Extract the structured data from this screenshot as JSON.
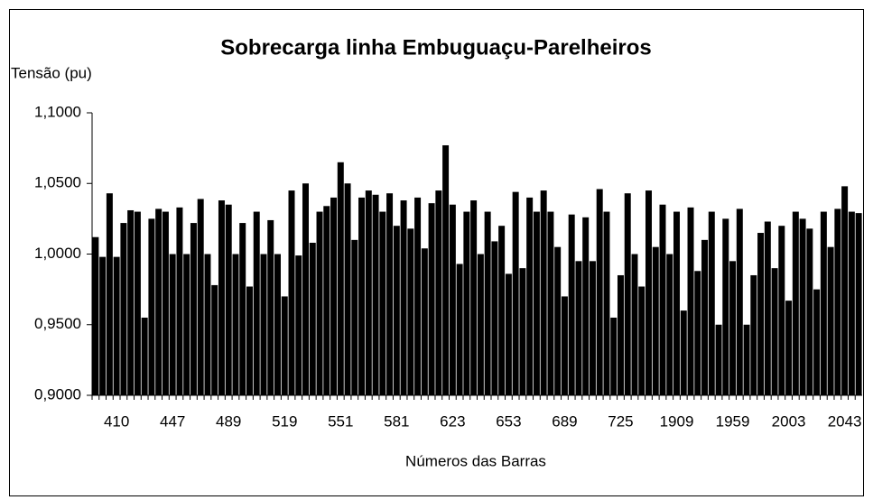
{
  "chart_data": {
    "type": "bar",
    "title": "Sobrecarga linha Embuguaçu-Parelheiros",
    "y_label": "Tensão (pu)",
    "x_label": "Números das Barras",
    "color": "#000000",
    "categories": [
      null,
      null,
      null,
      "410",
      null,
      null,
      null,
      null,
      null,
      null,
      null,
      "447",
      null,
      null,
      null,
      null,
      null,
      null,
      null,
      "489",
      null,
      null,
      null,
      null,
      null,
      null,
      null,
      "519",
      null,
      null,
      null,
      null,
      null,
      null,
      null,
      "551",
      null,
      null,
      null,
      null,
      null,
      null,
      null,
      "581",
      null,
      null,
      null,
      null,
      null,
      null,
      null,
      "623",
      null,
      null,
      null,
      null,
      null,
      null,
      null,
      "653",
      null,
      null,
      null,
      null,
      null,
      null,
      null,
      "689",
      null,
      null,
      null,
      null,
      null,
      null,
      null,
      "725",
      null,
      null,
      null,
      null,
      null,
      null,
      null,
      "1909",
      null,
      null,
      null,
      null,
      null,
      null,
      null,
      "1959",
      null,
      null,
      null,
      null,
      null,
      null,
      null,
      "2003",
      null,
      null,
      null,
      null,
      null,
      null,
      null,
      "2043",
      null,
      null
    ],
    "values": [
      1.012,
      0.998,
      1.043,
      0.998,
      1.022,
      1.031,
      1.03,
      0.955,
      1.025,
      1.032,
      1.03,
      1.0,
      1.033,
      1.0,
      1.022,
      1.039,
      1.0,
      0.978,
      1.038,
      1.035,
      1.0,
      1.022,
      0.977,
      1.03,
      1.0,
      1.024,
      1.0,
      0.97,
      1.045,
      0.999,
      1.05,
      1.008,
      1.03,
      1.034,
      1.04,
      1.065,
      1.05,
      1.01,
      1.04,
      1.045,
      1.042,
      1.03,
      1.043,
      1.02,
      1.038,
      1.018,
      1.04,
      1.004,
      1.036,
      1.045,
      1.077,
      1.035,
      0.993,
      1.03,
      1.038,
      1.0,
      1.03,
      1.009,
      1.02,
      0.986,
      1.044,
      0.99,
      1.04,
      1.03,
      1.045,
      1.03,
      1.005,
      0.97,
      1.028,
      0.995,
      1.026,
      0.995,
      1.046,
      1.03,
      0.955,
      0.985,
      1.043,
      1.0,
      0.977,
      1.045,
      1.005,
      1.035,
      1.0,
      1.03,
      0.96,
      1.033,
      0.988,
      1.01,
      1.03,
      0.95,
      1.025,
      0.995,
      1.032,
      0.95,
      0.985,
      1.015,
      1.023,
      0.99,
      1.02,
      0.967,
      1.03,
      1.025,
      1.018,
      0.975,
      1.03,
      1.005,
      1.032,
      1.048,
      1.03,
      1.029
    ],
    "ylim": [
      0.9,
      1.1
    ],
    "yticks": [
      {
        "value": 0.9,
        "label": "0,9000"
      },
      {
        "value": 0.95,
        "label": "0,9500"
      },
      {
        "value": 1.0,
        "label": "1,0000"
      },
      {
        "value": 1.05,
        "label": "1,0500"
      },
      {
        "value": 1.1,
        "label": "1,1000"
      }
    ]
  }
}
